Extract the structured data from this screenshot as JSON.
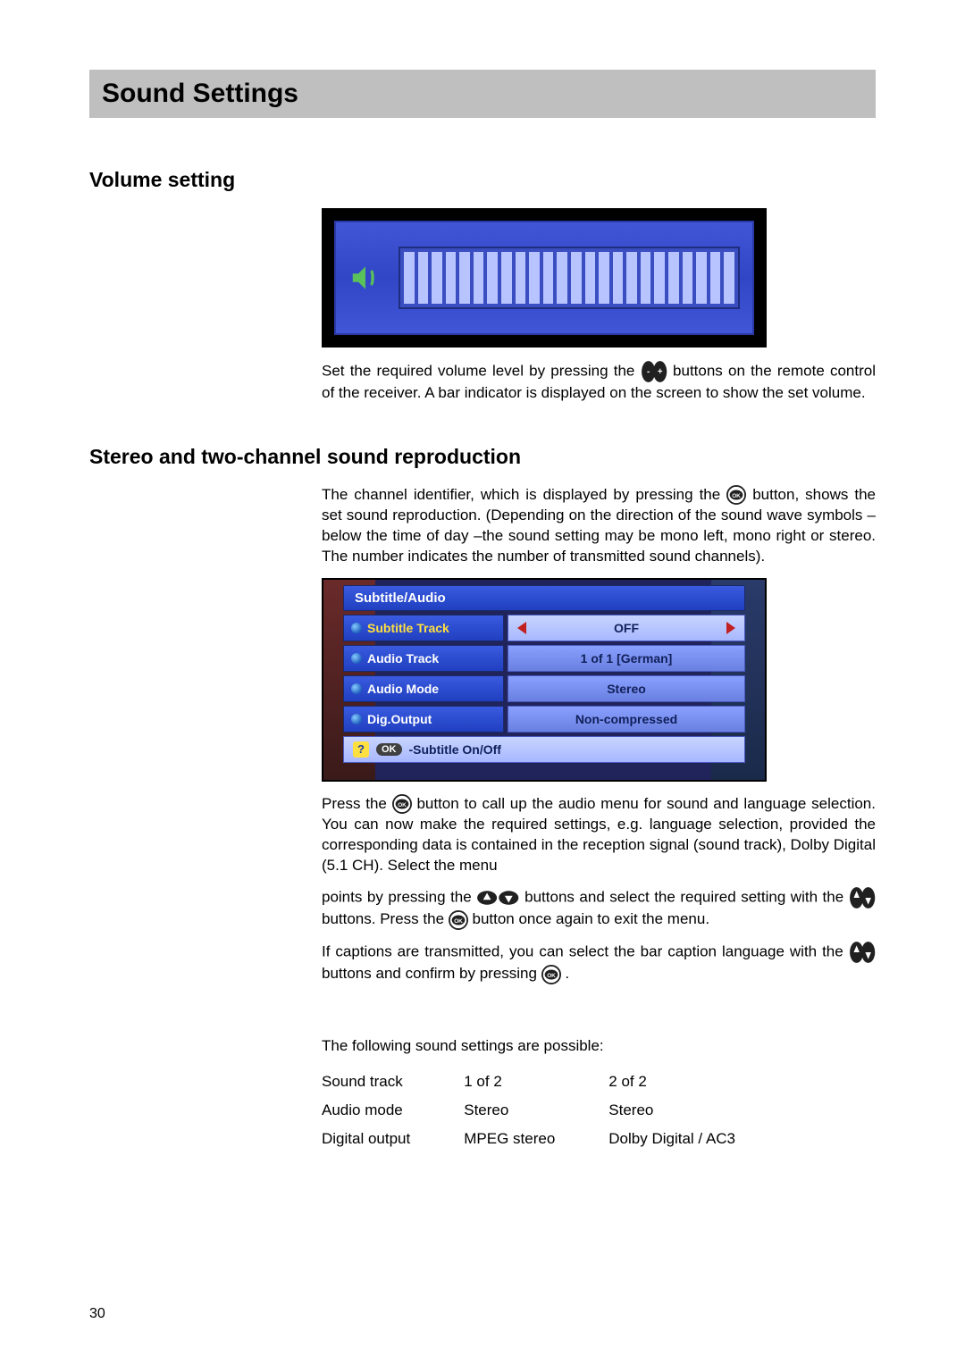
{
  "pageTitle": "Sound Settings",
  "pageNumber": "30",
  "section1": {
    "heading": "Volume setting",
    "para_a": "Set the required volume level by pressing the ",
    "para_b": " buttons on the remote control of the receiver. A bar indicator is displayed on the screen to show the set volume.",
    "bar_count": 24,
    "colors": {
      "panel": "#3a4ec2",
      "bar": "#b8c4ff"
    }
  },
  "section2": {
    "heading": "Stereo and two-channel sound reproduction",
    "p1a": "The channel identifier, which is displayed by pressing the ",
    "p1b": " button, shows the set sound reproduction. (Depending on the direction of the sound wave symbols –below the time of day –the sound setting may be mono left, mono right or stereo. The number indicates the number of transmitted sound channels).",
    "menu": {
      "header": "Subtitle/Audio",
      "rows": [
        {
          "label": "Subtitle Track",
          "value": "OFF",
          "selected": true
        },
        {
          "label": "Audio Track",
          "value": "1 of 1 [German]",
          "selected": false
        },
        {
          "label": "Audio Mode",
          "value": "Stereo",
          "selected": false
        },
        {
          "label": "Dig.Output",
          "value": "Non-compressed",
          "selected": false
        }
      ],
      "footer_badge": "OK",
      "footer_text": "-Subtitle On/Off"
    },
    "p2a": "Press the ",
    "p2b": " button to call up the audio menu for sound and language selection. You can now make the required settings, e.g. language selection, provided the corresponding data is contained in the reception signal (sound track), Dolby Digital (5.1 CH). Select the menu",
    "p3a": "points by pressing the ",
    "p3b": " buttons and select the required setting with the ",
    "p3c": " buttons. Press the ",
    "p3d": "  button once again to exit the menu.",
    "p4a": "If captions are transmitted, you can select the bar caption language with the ",
    "p4b": " buttons and confirm by pressing ",
    "p4c": " .",
    "tableIntro": "The following sound settings are possible:",
    "table": {
      "rows": [
        [
          "Sound track",
          "1 of 2",
          "2 of 2"
        ],
        [
          "Audio mode",
          "Stereo",
          "Stereo"
        ],
        [
          "Digital output",
          "MPEG stereo",
          "Dolby Digital / AC3"
        ]
      ]
    }
  }
}
